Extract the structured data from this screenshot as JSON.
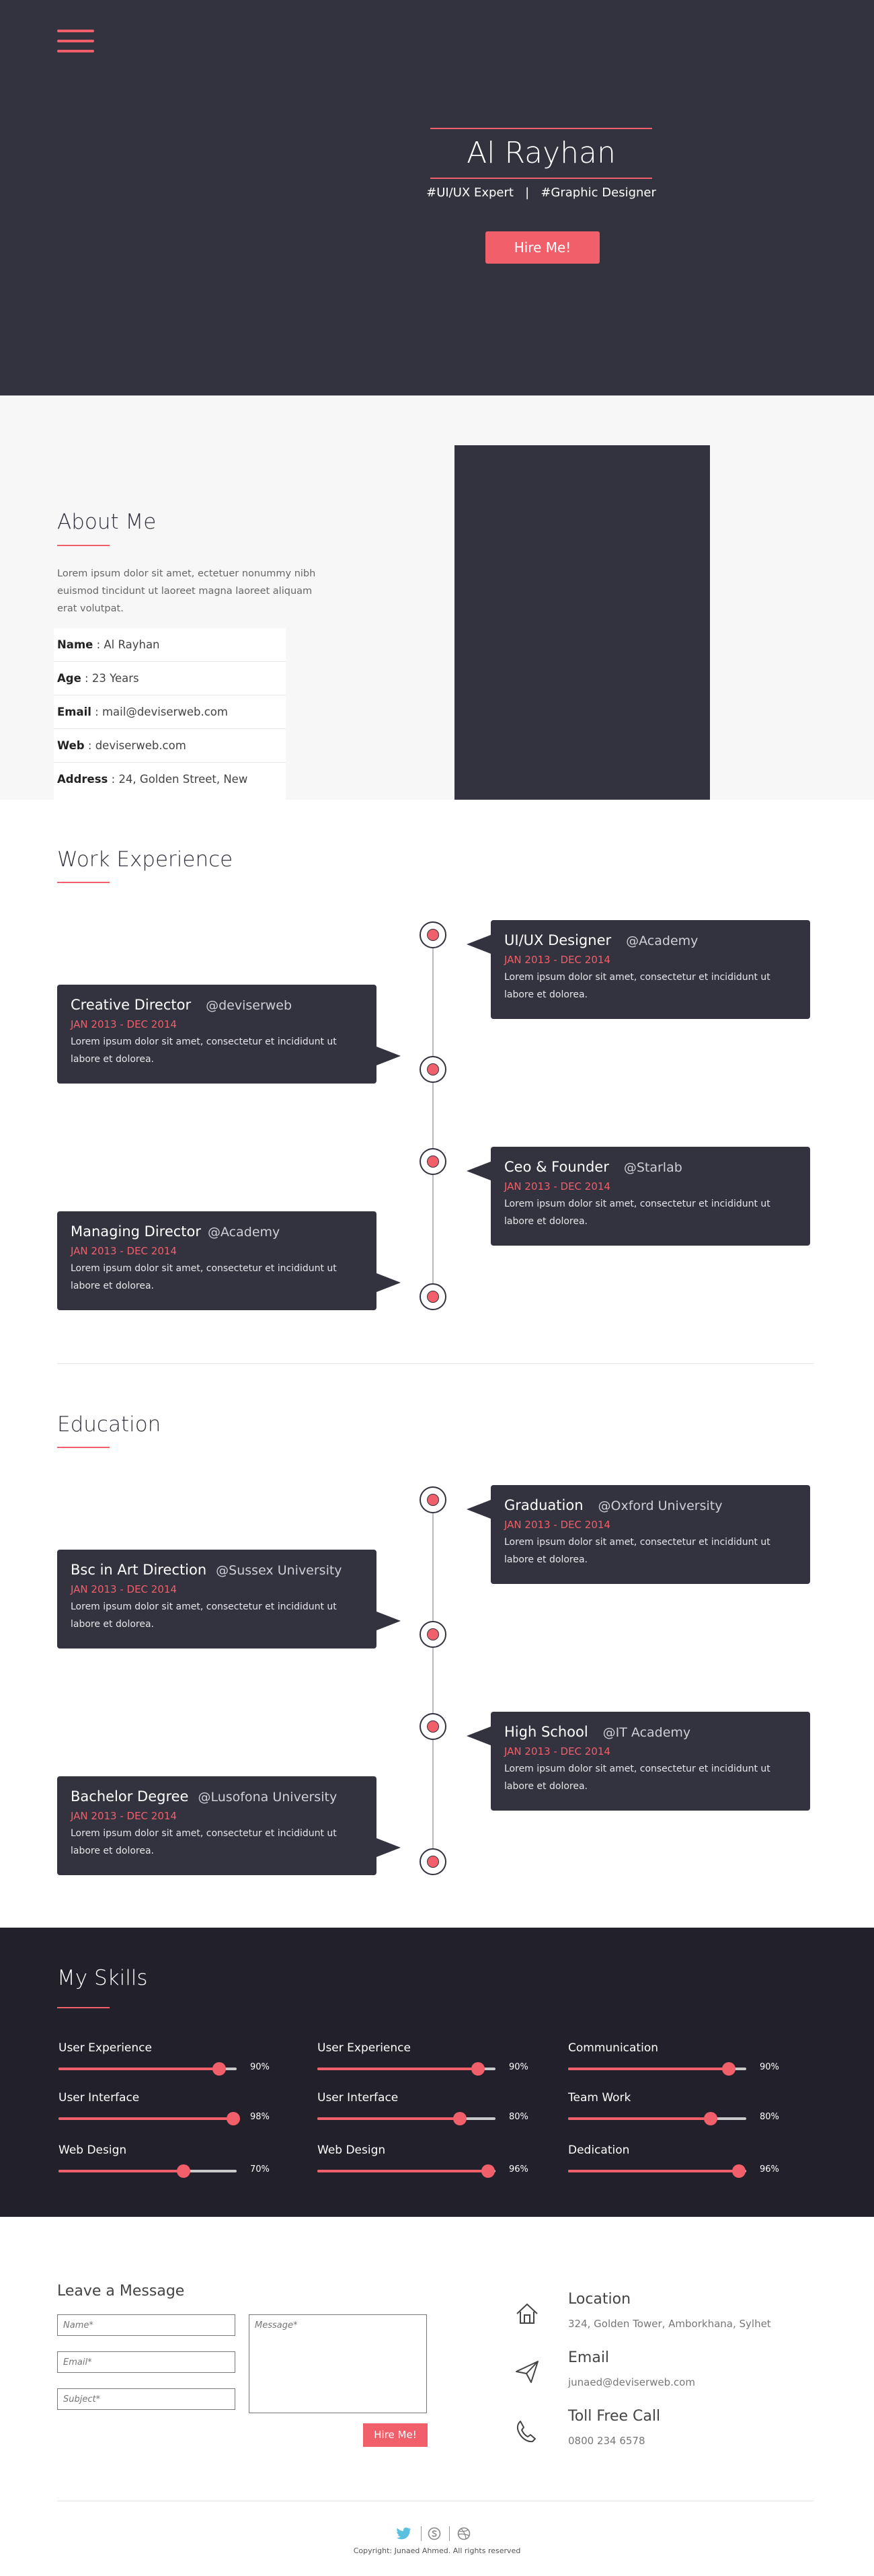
{
  "hero": {
    "name": "Al Rayhan",
    "tagline": "#UI/UX Expert   |   #Graphic Designer",
    "hire_button": "Hire Me!"
  },
  "about": {
    "title": "About Me",
    "paragraph": "Lorem ipsum dolor sit amet, ectetuer nonummy nibh euismod tincidunt ut laoreet  magna  laoreet  aliquam erat volutpat.",
    "info": [
      {
        "label": "Name",
        "value": "Al Rayhan"
      },
      {
        "label": "Age",
        "value": "23 Years"
      },
      {
        "label": "Email",
        "value": "mail@deviserweb.com"
      },
      {
        "label": "Web",
        "value": "deviserweb.com"
      },
      {
        "label": "Address",
        "value": "24, Golden Street, New"
      }
    ]
  },
  "work": {
    "title": "Work Experience",
    "items": [
      {
        "title": "UI/UX Designer",
        "org": "@Academy",
        "date": "JAN 2013 - DEC 2014",
        "desc": "Lorem ipsum dolor sit amet, consectetur et incididunt ut labore et dolorea."
      },
      {
        "title": "Creative Director",
        "org": "@deviserweb",
        "date": "JAN 2013 - DEC 2014",
        "desc": "Lorem ipsum dolor sit amet, consectetur et incididunt ut labore et dolorea."
      },
      {
        "title": "Ceo & Founder",
        "org": "@Starlab",
        "date": "JAN 2013 - DEC 2014",
        "desc": "Lorem ipsum dolor sit amet, consectetur et incididunt ut labore et dolorea."
      },
      {
        "title": "Managing Director",
        "org": "@Academy",
        "date": "JAN 2013 - DEC 2014",
        "desc": "Lorem ipsum dolor sit amet, consectetur et incididunt ut labore et dolorea."
      }
    ]
  },
  "education": {
    "title": "Education",
    "items": [
      {
        "title": "Graduation",
        "org": "@Oxford University",
        "date": "JAN 2013 - DEC 2014",
        "desc": "Lorem ipsum dolor sit amet, consectetur et incididunt ut labore et dolorea."
      },
      {
        "title": "Bsc in Art Direction",
        "org": "@Sussex University",
        "date": "JAN 2013 - DEC 2014",
        "desc": "Lorem ipsum dolor sit amet, consectetur et incididunt ut labore et dolorea."
      },
      {
        "title": "High School",
        "org": "@IT Academy",
        "date": "JAN 2013 - DEC 2014",
        "desc": "Lorem ipsum dolor sit amet, consectetur et incididunt ut labore et dolorea."
      },
      {
        "title": "Bachelor Degree",
        "org": "@Lusofona University",
        "date": "JAN 2013 - DEC 2014",
        "desc": "Lorem ipsum dolor sit amet, consectetur et incididunt ut labore et dolorea."
      }
    ]
  },
  "skills": {
    "title": "My Skills",
    "columns": [
      [
        {
          "name": "User Experience",
          "percent": 90,
          "label": "90%"
        },
        {
          "name": "User Interface",
          "percent": 98,
          "label": "98%"
        },
        {
          "name": "Web Design",
          "percent": 70,
          "label": "70%"
        }
      ],
      [
        {
          "name": "User Experience",
          "percent": 90,
          "label": "90%"
        },
        {
          "name": "User Interface",
          "percent": 80,
          "label": "80%"
        },
        {
          "name": "Web Design",
          "percent": 96,
          "label": "96%"
        }
      ],
      [
        {
          "name": "Communication",
          "percent": 90,
          "label": "90%"
        },
        {
          "name": "Team Work",
          "percent": 80,
          "label": "80%"
        },
        {
          "name": "Dedication",
          "percent": 96,
          "label": "96%"
        }
      ]
    ]
  },
  "contact": {
    "title": "Leave a Message",
    "name_placeholder": "Name*",
    "email_placeholder": "Email*",
    "subject_placeholder": "Subject*",
    "message_placeholder": "Message*",
    "submit_label": "Hire Me!",
    "location_label": "Location",
    "location_value": "324, Golden Tower, Amborkhana, Sylhet",
    "email_label": "Email",
    "email_value": "junaed@deviserweb.com",
    "phone_label": "Toll Free Call",
    "phone_value": "0800 234 6578"
  },
  "footer": {
    "copyright": "Copyright: Junaed Ahmed. All rights reserved"
  },
  "colors": {
    "accent": "#f15f6a",
    "dark": "#33323f",
    "darker": "#22212b"
  }
}
